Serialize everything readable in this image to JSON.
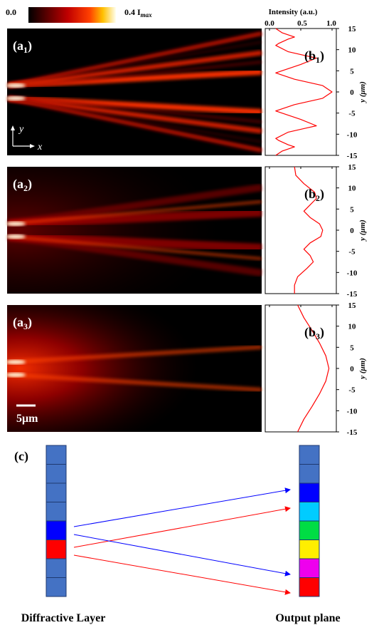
{
  "colorbar": {
    "min_label": "0.0",
    "max_label": "0.4 I",
    "max_sub": "max"
  },
  "intensity_axis": {
    "title": "Intensity (a.u.)",
    "ticks": [
      "0.0",
      "0.5",
      "1.0"
    ]
  },
  "y_axis": {
    "label": "y (μm)",
    "ticks": [
      "15",
      "10",
      "5",
      "0",
      "-5",
      "-10",
      "-15"
    ]
  },
  "panels_a": [
    {
      "label": "(a",
      "sub": "1",
      "close": ")"
    },
    {
      "label": "(a",
      "sub": "2",
      "close": ")"
    },
    {
      "label": "(a",
      "sub": "3",
      "close": ")"
    }
  ],
  "panels_b": [
    {
      "label": "(b",
      "sub": "1",
      "close": ")"
    },
    {
      "label": "(b",
      "sub": "2",
      "close": ")"
    },
    {
      "label": "(b",
      "sub": "3",
      "close": ")"
    }
  ],
  "axes_indicator": {
    "y": "y",
    "x": "x"
  },
  "scale_bar": {
    "label": "5μm"
  },
  "panel_c": {
    "label": "(c)",
    "left_caption": "Diffractive Layer",
    "right_caption": "Output plane",
    "left_cells": [
      "#4472c4",
      "#4472c4",
      "#4472c4",
      "#4472c4",
      "#0000ff",
      "#ff0000",
      "#4472c4",
      "#4472c4"
    ],
    "right_cells": [
      "#4472c4",
      "#4472c4",
      "#0000ff",
      "#00ccff",
      "#00dd44",
      "#ffee00",
      "#ee00ee",
      "#ff0000"
    ],
    "arrow_colors": {
      "blue": "#0000ff",
      "red": "#ff0000"
    }
  },
  "chart_data": [
    {
      "type": "line",
      "panel": "b1",
      "xlabel": "Intensity (a.u.)",
      "ylabel": "y (μm)",
      "xlim": [
        0,
        1
      ],
      "ylim": [
        -15,
        15
      ],
      "series": [
        {
          "points": [
            [
              0.1,
              -15
            ],
            [
              0.2,
              -14
            ],
            [
              0.4,
              -13
            ],
            [
              0.3,
              -12.5
            ],
            [
              0.15,
              -11.5
            ],
            [
              0.1,
              -11
            ],
            [
              0.3,
              -9.5
            ],
            [
              0.6,
              -8.5
            ],
            [
              0.75,
              -8
            ],
            [
              0.5,
              -6.5
            ],
            [
              0.2,
              -5
            ],
            [
              0.1,
              -4.5
            ],
            [
              0.4,
              -3
            ],
            [
              0.85,
              -1.5
            ],
            [
              1.0,
              0
            ],
            [
              0.85,
              1.5
            ],
            [
              0.4,
              3
            ],
            [
              0.1,
              4.5
            ],
            [
              0.2,
              5
            ],
            [
              0.5,
              6.5
            ],
            [
              0.75,
              8
            ],
            [
              0.6,
              8.5
            ],
            [
              0.3,
              9.5
            ],
            [
              0.1,
              11
            ],
            [
              0.15,
              11.5
            ],
            [
              0.3,
              12.5
            ],
            [
              0.4,
              13
            ],
            [
              0.2,
              14
            ],
            [
              0.1,
              15
            ]
          ]
        }
      ]
    },
    {
      "type": "line",
      "panel": "b2",
      "xlabel": "Intensity (a.u.)",
      "ylabel": "y (μm)",
      "xlim": [
        0,
        1
      ],
      "ylim": [
        -15,
        15
      ],
      "series": [
        {
          "points": [
            [
              0.4,
              -15
            ],
            [
              0.4,
              -13
            ],
            [
              0.45,
              -11
            ],
            [
              0.6,
              -9
            ],
            [
              0.7,
              -7.5
            ],
            [
              0.65,
              -6
            ],
            [
              0.55,
              -4.5
            ],
            [
              0.65,
              -3
            ],
            [
              0.82,
              -1.5
            ],
            [
              0.85,
              0
            ],
            [
              0.8,
              1.5
            ],
            [
              0.65,
              3
            ],
            [
              0.55,
              4.5
            ],
            [
              0.65,
              6
            ],
            [
              0.75,
              7.5
            ],
            [
              0.72,
              9
            ],
            [
              0.55,
              11
            ],
            [
              0.42,
              13
            ],
            [
              0.4,
              15
            ]
          ]
        }
      ]
    },
    {
      "type": "line",
      "panel": "b3",
      "xlabel": "Intensity (a.u.)",
      "ylabel": "y (μm)",
      "xlim": [
        0,
        1
      ],
      "ylim": [
        -15,
        15
      ],
      "series": [
        {
          "points": [
            [
              0.45,
              -15
            ],
            [
              0.55,
              -12
            ],
            [
              0.68,
              -9
            ],
            [
              0.8,
              -6
            ],
            [
              0.9,
              -3
            ],
            [
              0.95,
              0
            ],
            [
              0.9,
              3
            ],
            [
              0.8,
              6
            ],
            [
              0.68,
              9
            ],
            [
              0.55,
              12
            ],
            [
              0.45,
              15
            ]
          ]
        }
      ]
    }
  ]
}
